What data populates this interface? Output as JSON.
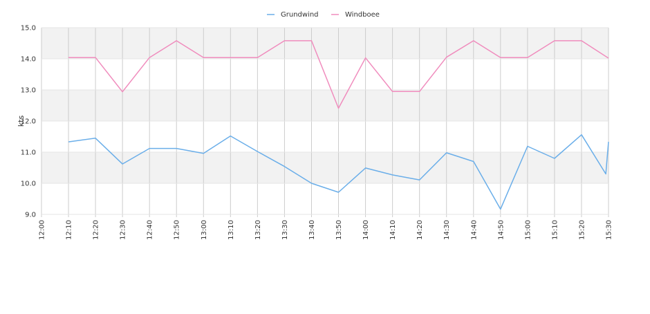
{
  "chart_data": {
    "type": "line",
    "x": [
      "12:00",
      "12:10",
      "12:20",
      "12:30",
      "12:40",
      "12:50",
      "13:00",
      "13:10",
      "13:20",
      "13:30",
      "13:40",
      "13:50",
      "14:00",
      "14:10",
      "14:20",
      "14:30",
      "14:40",
      "14:50",
      "15:00",
      "15:10",
      "15:20",
      "15:30"
    ],
    "ylabel": "kts",
    "ylim": [
      9.0,
      15.0
    ],
    "yticks": [
      "9.0",
      "10.0",
      "11.0",
      "12.0",
      "13.0",
      "14.0",
      "15.0"
    ],
    "grid": true,
    "legend_position": "top-center",
    "series": [
      {
        "name": "Grundwind",
        "color": "#6aaee9",
        "points": [
          [
            "12:10",
            11.33
          ],
          [
            "12:20",
            11.45
          ],
          [
            "12:30",
            10.62
          ],
          [
            "12:40",
            11.12
          ],
          [
            "12:50",
            11.12
          ],
          [
            "13:00",
            10.96
          ],
          [
            "13:10",
            11.52
          ],
          [
            "13:20",
            11.02
          ],
          [
            "13:30",
            10.54
          ],
          [
            "13:40",
            10.0
          ],
          [
            "13:50",
            9.71
          ],
          [
            "14:00",
            10.49
          ],
          [
            "14:10",
            10.27
          ],
          [
            "14:20",
            10.11
          ],
          [
            "14:30",
            10.98
          ],
          [
            "14:40",
            10.7
          ],
          [
            "14:50",
            9.17
          ],
          [
            "15:00",
            11.19
          ],
          [
            "15:10",
            10.8
          ],
          [
            "15:20",
            11.56
          ],
          [
            "15:29",
            10.3
          ],
          [
            "15:30",
            11.33
          ]
        ]
      },
      {
        "name": "Windboee",
        "color": "#f08cbd",
        "points": [
          [
            "12:10",
            14.04
          ],
          [
            "12:20",
            14.04
          ],
          [
            "12:30",
            12.94
          ],
          [
            "12:40",
            14.04
          ],
          [
            "12:50",
            14.58
          ],
          [
            "13:00",
            14.04
          ],
          [
            "13:10",
            14.04
          ],
          [
            "13:20",
            14.04
          ],
          [
            "13:30",
            14.58
          ],
          [
            "13:40",
            14.58
          ],
          [
            "13:50",
            12.41
          ],
          [
            "14:00",
            14.03
          ],
          [
            "14:10",
            12.95
          ],
          [
            "14:20",
            12.95
          ],
          [
            "14:30",
            14.05
          ],
          [
            "14:40",
            14.58
          ],
          [
            "14:50",
            14.04
          ],
          [
            "15:00",
            14.04
          ],
          [
            "15:10",
            14.58
          ],
          [
            "15:20",
            14.58
          ],
          [
            "15:30",
            14.02
          ]
        ]
      }
    ]
  }
}
